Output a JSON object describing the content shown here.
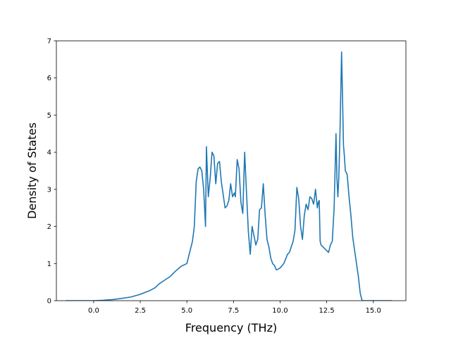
{
  "chart_data": {
    "type": "line",
    "title": "",
    "xlabel": "Frequency (THz)",
    "ylabel": "Density of States",
    "xlim": [
      -2.0,
      16.75
    ],
    "ylim": [
      0,
      7
    ],
    "xticks": [
      0.0,
      2.5,
      5.0,
      7.5,
      10.0,
      12.5,
      15.0
    ],
    "xtick_labels": [
      "0.0",
      "2.5",
      "5.0",
      "7.5",
      "10.0",
      "12.5",
      "15.0"
    ],
    "yticks": [
      0,
      1,
      2,
      3,
      4,
      5,
      6,
      7
    ],
    "ytick_labels": [
      "0",
      "1",
      "2",
      "3",
      "4",
      "5",
      "6",
      "7"
    ],
    "grid": false,
    "legend": "none",
    "colors": {
      "line": "#1f77b4"
    },
    "series": [
      {
        "x": [
          -1.5,
          -0.5,
          0.0,
          0.5,
          1.0,
          1.5,
          2.0,
          2.5,
          3.0,
          3.3,
          3.5,
          3.8,
          4.1,
          4.4,
          4.7,
          5.0,
          5.1,
          5.3,
          5.4,
          5.5,
          5.6,
          5.7,
          5.8,
          5.9,
          6.0,
          6.05,
          6.15,
          6.25,
          6.35,
          6.45,
          6.55,
          6.65,
          6.75,
          6.85,
          6.95,
          7.05,
          7.15,
          7.25,
          7.35,
          7.45,
          7.55,
          7.6,
          7.7,
          7.8,
          7.9,
          8.0,
          8.1,
          8.2,
          8.3,
          8.4,
          8.5,
          8.6,
          8.7,
          8.8,
          8.9,
          9.0,
          9.1,
          9.2,
          9.3,
          9.4,
          9.5,
          9.6,
          9.7,
          9.8,
          9.9,
          10.0,
          10.2,
          10.4,
          10.5,
          10.6,
          10.7,
          10.8,
          10.9,
          11.0,
          11.1,
          11.2,
          11.3,
          11.4,
          11.5,
          11.6,
          11.7,
          11.8,
          11.9,
          12.0,
          12.05,
          12.1,
          12.15,
          12.2,
          12.4,
          12.5,
          12.6,
          12.7,
          12.8,
          12.9,
          13.0,
          13.05,
          13.1,
          13.15,
          13.2,
          13.3,
          13.35,
          13.4,
          13.45,
          13.5,
          13.6,
          13.7,
          13.8,
          13.9,
          14.0,
          14.1,
          14.2,
          14.3,
          14.4,
          14.5,
          14.7,
          15.0,
          15.5,
          16.0
        ],
        "y": [
          0.0,
          0.0,
          0.0,
          0.01,
          0.03,
          0.06,
          0.1,
          0.17,
          0.27,
          0.35,
          0.45,
          0.55,
          0.65,
          0.8,
          0.93,
          1.0,
          1.2,
          1.6,
          2.0,
          3.2,
          3.55,
          3.6,
          3.5,
          3.0,
          2.0,
          4.15,
          2.8,
          3.3,
          4.0,
          3.9,
          3.15,
          3.7,
          3.75,
          3.2,
          2.85,
          2.5,
          2.55,
          2.7,
          3.15,
          2.8,
          2.9,
          2.8,
          3.8,
          3.55,
          2.65,
          2.35,
          4.0,
          2.9,
          1.85,
          1.25,
          2.0,
          1.75,
          1.5,
          1.65,
          2.45,
          2.5,
          3.15,
          2.3,
          1.65,
          1.45,
          1.15,
          1.0,
          0.95,
          0.83,
          0.85,
          0.88,
          1.0,
          1.25,
          1.3,
          1.45,
          1.6,
          1.9,
          3.05,
          2.75,
          2.0,
          1.65,
          2.3,
          2.6,
          2.45,
          2.8,
          2.75,
          2.6,
          3.0,
          2.5,
          2.65,
          2.7,
          1.6,
          1.5,
          1.4,
          1.35,
          1.3,
          1.5,
          1.6,
          2.5,
          4.5,
          3.3,
          2.8,
          3.3,
          4.2,
          6.7,
          5.5,
          4.2,
          3.9,
          3.5,
          3.4,
          2.8,
          2.3,
          1.7,
          1.35,
          1.0,
          0.65,
          0.2,
          0.0,
          0.0,
          0.0,
          0.0,
          0.0,
          0.0
        ]
      }
    ]
  }
}
